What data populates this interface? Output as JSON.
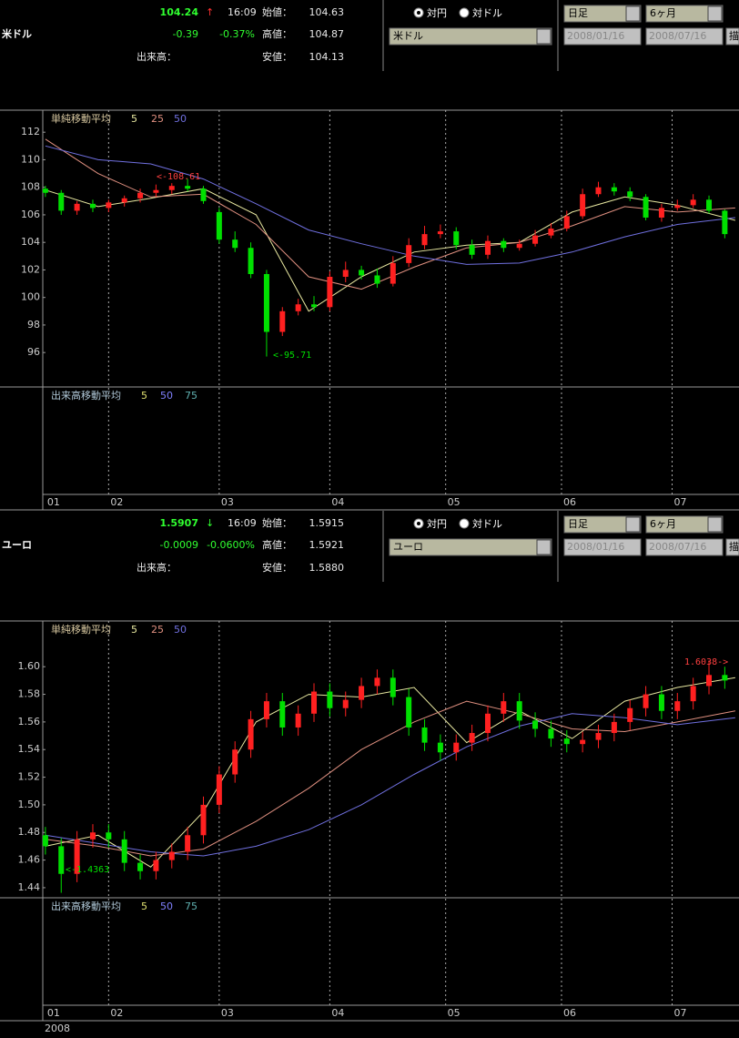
{
  "panels": [
    {
      "currency": "米ドル",
      "price": "104.24",
      "arrow": "↑",
      "time": "16:09",
      "open_label": "始値：",
      "open": "104.63",
      "change": "-0.39",
      "change_pct": "-0.37%",
      "high_label": "高値：",
      "high": "104.87",
      "volume_label": "出来高：",
      "low_label": "安値：",
      "low": "104.13",
      "radio_yen": "対円",
      "radio_dollar": "対ドル",
      "pair_select": "米ドル",
      "interval_select": "日足",
      "range_select": "6ヶ月",
      "date_from": "2008/01/16",
      "date_to": "2008/07/16",
      "draw_button": "描"
    },
    {
      "currency": "ユーロ",
      "price": "1.5907",
      "arrow": "↓",
      "time": "16:09",
      "open_label": "始値：",
      "open": "1.5915",
      "change": "-0.0009",
      "change_pct": "-0.0600%",
      "high_label": "高値：",
      "high": "1.5921",
      "volume_label": "出来高：",
      "low_label": "安値：",
      "low": "1.5880",
      "radio_yen": "対円",
      "radio_dollar": "対ドル",
      "pair_select": "ユーロ",
      "interval_select": "日足",
      "range_select": "6ヶ月",
      "date_from": "2008/01/16",
      "date_to": "2008/07/16",
      "draw_button": "描"
    }
  ],
  "chart_data": [
    {
      "type": "candlestick",
      "legend_title": "単純移動平均",
      "volume_legend_title": "出来高移動平均",
      "volume_ma": [
        {
          "name": "5",
          "color": "#e0e070"
        },
        {
          "name": "50",
          "color": "#8080ff"
        },
        {
          "name": "75",
          "color": "#60b0b0"
        }
      ],
      "up_color": "#ff2020",
      "down_color": "#00e000",
      "ylim": [
        93.5,
        113.6
      ],
      "yticks": [
        96,
        98,
        100,
        102,
        104,
        106,
        108,
        110,
        112
      ],
      "xlim": [
        -0.5,
        131.7
      ],
      "xticks": [
        {
          "value": 0,
          "label": "01"
        },
        {
          "value": 12,
          "label": "02"
        },
        {
          "value": 33,
          "label": "03"
        },
        {
          "value": 54,
          "label": "04"
        },
        {
          "value": 76,
          "label": "05"
        },
        {
          "value": 98,
          "label": "06"
        },
        {
          "value": 119,
          "label": "07"
        }
      ],
      "candles": {
        "x": [
          0,
          3,
          6,
          9,
          12,
          15,
          18,
          21,
          24,
          27,
          30,
          33,
          36,
          39,
          42,
          45,
          48,
          51,
          54,
          57,
          60,
          63,
          66,
          69,
          72,
          75,
          78,
          81,
          84,
          87,
          90,
          93,
          96,
          99,
          102,
          105,
          108,
          111,
          114,
          117,
          120,
          123,
          126,
          129
        ],
        "open": [
          107.9,
          107.6,
          106.3,
          106.8,
          106.5,
          106.9,
          107.2,
          107.6,
          107.8,
          108.1,
          107.9,
          106.2,
          104.2,
          103.6,
          101.7,
          97.5,
          99.0,
          99.5,
          99.3,
          101.5,
          102.0,
          101.6,
          101.0,
          102.5,
          103.8,
          104.6,
          104.8,
          103.8,
          103.1,
          104.1,
          103.6,
          103.9,
          104.5,
          105.0,
          105.9,
          107.5,
          108.0,
          107.7,
          107.3,
          105.8,
          106.5,
          106.7,
          107.1,
          106.3
        ],
        "high": [
          108.1,
          107.8,
          107.0,
          107.1,
          107.1,
          107.4,
          107.9,
          108.2,
          108.3,
          108.61,
          108.1,
          106.5,
          104.8,
          104.0,
          102.0,
          99.3,
          99.9,
          100.1,
          101.9,
          102.6,
          102.3,
          102.1,
          103.0,
          104.3,
          105.2,
          105.3,
          105.1,
          104.2,
          104.5,
          104.3,
          104.2,
          104.9,
          105.4,
          106.3,
          107.9,
          108.4,
          108.3,
          108.0,
          107.5,
          106.8,
          107.1,
          107.5,
          107.4,
          106.4
        ],
        "low": [
          107.3,
          106.0,
          106.0,
          106.2,
          106.2,
          106.6,
          106.9,
          107.3,
          107.5,
          107.7,
          106.8,
          103.9,
          103.3,
          101.4,
          95.71,
          97.2,
          98.7,
          99.0,
          99.0,
          101.1,
          101.3,
          100.7,
          100.8,
          102.2,
          103.5,
          104.3,
          103.5,
          102.8,
          102.8,
          103.3,
          103.4,
          103.7,
          104.3,
          104.8,
          105.7,
          107.3,
          107.4,
          107.0,
          105.6,
          105.5,
          106.3,
          106.5,
          106.1,
          104.3
        ],
        "close": [
          107.6,
          106.3,
          106.8,
          106.5,
          106.9,
          107.2,
          107.6,
          107.8,
          108.1,
          107.9,
          107.0,
          104.2,
          103.6,
          101.7,
          97.5,
          99.0,
          99.5,
          99.3,
          101.5,
          102.0,
          101.6,
          101.0,
          102.5,
          103.8,
          104.6,
          104.8,
          103.8,
          103.1,
          104.1,
          103.6,
          103.9,
          104.5,
          105.0,
          105.9,
          107.5,
          108.0,
          107.7,
          107.3,
          105.8,
          106.5,
          106.7,
          107.1,
          106.3,
          104.6
        ]
      },
      "series": [
        {
          "name": "5",
          "color": "#e8e8a0",
          "x": [
            0,
            10,
            20,
            30,
            40,
            50,
            60,
            70,
            80,
            90,
            100,
            110,
            120,
            131
          ],
          "values": [
            107.8,
            106.6,
            107.2,
            107.9,
            106.0,
            99.0,
            101.5,
            103.3,
            103.8,
            104.0,
            106.2,
            107.3,
            106.7,
            105.6
          ]
        },
        {
          "name": "25",
          "color": "#e09080",
          "x": [
            0,
            10,
            20,
            30,
            40,
            50,
            60,
            70,
            80,
            90,
            100,
            110,
            120,
            131
          ],
          "values": [
            111.5,
            109.0,
            107.3,
            107.5,
            105.3,
            101.5,
            100.6,
            102.2,
            103.6,
            104.0,
            105.2,
            106.6,
            106.2,
            106.5
          ]
        },
        {
          "name": "50",
          "color": "#7070e0",
          "x": [
            0,
            10,
            20,
            30,
            40,
            50,
            60,
            70,
            80,
            90,
            100,
            110,
            120,
            131
          ],
          "values": [
            111.0,
            110.0,
            109.7,
            108.6,
            106.8,
            104.9,
            103.9,
            103.0,
            102.4,
            102.5,
            103.3,
            104.4,
            105.3,
            105.8
          ]
        }
      ],
      "annotations": [
        {
          "text": "<-108.61",
          "color": "#ff4040"
        },
        {
          "text": "<-95.71",
          "color": "#00e000"
        }
      ]
    },
    {
      "type": "candlestick",
      "legend_title": "単純移動平均",
      "volume_legend_title": "出来高移動平均",
      "x_label": "2008",
      "volume_ma": [
        {
          "name": "5",
          "color": "#e0e070"
        },
        {
          "name": "50",
          "color": "#8080ff"
        },
        {
          "name": "75",
          "color": "#60b0b0"
        }
      ],
      "up_color": "#ff2020",
      "down_color": "#00e000",
      "ylim": [
        1.4327,
        1.6331
      ],
      "yticks": [
        1.44,
        1.46,
        1.48,
        {
          "value": 1.5,
          "label": "1.50"
        },
        1.52,
        1.54,
        1.56,
        1.58,
        {
          "value": 1.6,
          "label": "1.60"
        }
      ],
      "xlim": [
        -0.5,
        131.7
      ],
      "xticks": [
        {
          "value": 0,
          "label": "01"
        },
        {
          "value": 12,
          "label": "02"
        },
        {
          "value": 33,
          "label": "03"
        },
        {
          "value": 54,
          "label": "04"
        },
        {
          "value": 76,
          "label": "05"
        },
        {
          "value": 98,
          "label": "06"
        },
        {
          "value": 119,
          "label": "07"
        }
      ],
      "candles": {
        "x": [
          0,
          3,
          6,
          9,
          12,
          15,
          18,
          21,
          24,
          27,
          30,
          33,
          36,
          39,
          42,
          45,
          48,
          51,
          54,
          57,
          60,
          63,
          66,
          69,
          72,
          75,
          78,
          81,
          84,
          87,
          90,
          93,
          96,
          99,
          102,
          105,
          108,
          111,
          114,
          117,
          120,
          123,
          126,
          129
        ],
        "open": [
          1.478,
          1.47,
          1.45,
          1.475,
          1.48,
          1.475,
          1.458,
          1.452,
          1.46,
          1.466,
          1.478,
          1.5,
          1.522,
          1.54,
          1.562,
          1.575,
          1.556,
          1.566,
          1.582,
          1.57,
          1.576,
          1.586,
          1.592,
          1.578,
          1.556,
          1.545,
          1.538,
          1.545,
          1.552,
          1.566,
          1.575,
          1.561,
          1.555,
          1.548,
          1.544,
          1.547,
          1.552,
          1.56,
          1.57,
          1.58,
          1.568,
          1.575,
          1.586,
          1.594
        ],
        "high": [
          1.484,
          1.476,
          1.481,
          1.486,
          1.486,
          1.481,
          1.464,
          1.466,
          1.472,
          1.484,
          1.506,
          1.528,
          1.546,
          1.568,
          1.581,
          1.581,
          1.572,
          1.588,
          1.588,
          1.582,
          1.592,
          1.598,
          1.598,
          1.584,
          1.562,
          1.551,
          1.551,
          1.558,
          1.572,
          1.581,
          1.581,
          1.567,
          1.561,
          1.554,
          1.553,
          1.558,
          1.566,
          1.576,
          1.586,
          1.586,
          1.581,
          1.592,
          1.6038,
          1.6
        ],
        "low": [
          1.464,
          1.4363,
          1.444,
          1.469,
          1.469,
          1.452,
          1.446,
          1.446,
          1.454,
          1.46,
          1.472,
          1.494,
          1.516,
          1.534,
          1.556,
          1.55,
          1.55,
          1.56,
          1.564,
          1.564,
          1.57,
          1.58,
          1.572,
          1.55,
          1.539,
          1.532,
          1.532,
          1.539,
          1.546,
          1.56,
          1.555,
          1.549,
          1.542,
          1.538,
          1.538,
          1.541,
          1.546,
          1.554,
          1.564,
          1.562,
          1.562,
          1.569,
          1.58,
          1.584
        ],
        "close": [
          1.47,
          1.45,
          1.475,
          1.48,
          1.475,
          1.458,
          1.452,
          1.46,
          1.466,
          1.478,
          1.5,
          1.522,
          1.54,
          1.562,
          1.575,
          1.556,
          1.566,
          1.582,
          1.57,
          1.576,
          1.586,
          1.592,
          1.578,
          1.556,
          1.545,
          1.538,
          1.545,
          1.552,
          1.566,
          1.575,
          1.561,
          1.555,
          1.548,
          1.544,
          1.547,
          1.552,
          1.56,
          1.57,
          1.58,
          1.568,
          1.575,
          1.586,
          1.594,
          1.59
        ]
      },
      "series": [
        {
          "name": "5",
          "color": "#e8e8a0",
          "x": [
            0,
            10,
            20,
            30,
            40,
            50,
            60,
            70,
            80,
            90,
            100,
            110,
            120,
            131
          ],
          "values": [
            1.47,
            1.478,
            1.455,
            1.495,
            1.56,
            1.58,
            1.578,
            1.585,
            1.545,
            1.568,
            1.548,
            1.575,
            1.585,
            1.592
          ]
        },
        {
          "name": "25",
          "color": "#e09080",
          "x": [
            0,
            10,
            20,
            30,
            40,
            50,
            60,
            70,
            80,
            90,
            100,
            110,
            120,
            131
          ],
          "values": [
            1.475,
            1.47,
            1.463,
            1.468,
            1.488,
            1.512,
            1.54,
            1.56,
            1.575,
            1.566,
            1.555,
            1.553,
            1.56,
            1.568
          ]
        },
        {
          "name": "50",
          "color": "#7070e0",
          "x": [
            0,
            10,
            20,
            30,
            40,
            50,
            60,
            70,
            80,
            90,
            100,
            110,
            120,
            131
          ],
          "values": [
            1.478,
            1.472,
            1.466,
            1.463,
            1.47,
            1.482,
            1.5,
            1.522,
            1.542,
            1.557,
            1.566,
            1.563,
            1.558,
            1.563
          ]
        }
      ],
      "annotations": [
        {
          "text": "<-1.4363",
          "color": "#00e000"
        },
        {
          "text": "1.6038->",
          "color": "#ff4040"
        }
      ]
    }
  ]
}
